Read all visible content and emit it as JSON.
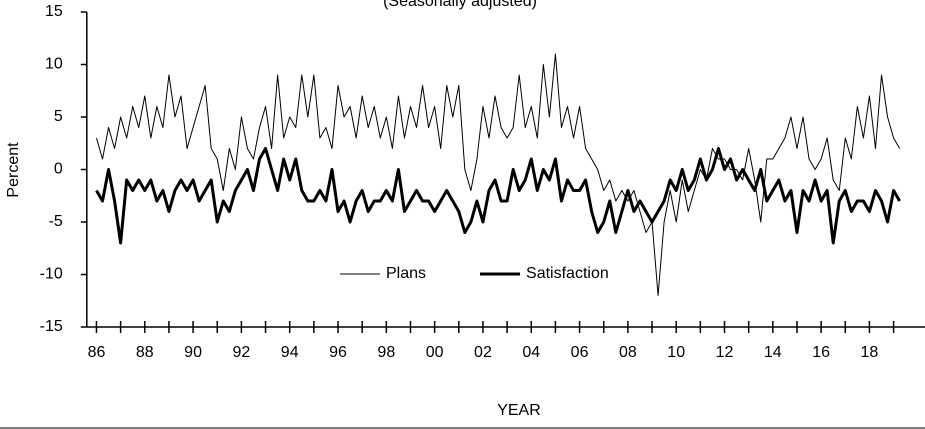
{
  "chart_data": {
    "type": "line",
    "subtitle": "(Seasonally adjusted)",
    "x_label": "YEAR",
    "y_label": "Percent",
    "legend": "bottom-center",
    "xlim": [
      1985.6,
      2020.3
    ],
    "ylim": [
      -15,
      15
    ],
    "yticks": [
      15,
      10,
      5,
      0,
      -5,
      -10,
      -15
    ],
    "xticks": [
      {
        "value": 1986,
        "label": "86"
      },
      {
        "value": 1988,
        "label": "88"
      },
      {
        "value": 1990,
        "label": "90"
      },
      {
        "value": 1992,
        "label": "92"
      },
      {
        "value": 1994,
        "label": "94"
      },
      {
        "value": 1996,
        "label": "96"
      },
      {
        "value": 1998,
        "label": "98"
      },
      {
        "value": 2000,
        "label": "00"
      },
      {
        "value": 2002,
        "label": "02"
      },
      {
        "value": 2004,
        "label": "04"
      },
      {
        "value": 2006,
        "label": "06"
      },
      {
        "value": 2008,
        "label": "08"
      },
      {
        "value": 2010,
        "label": "10"
      },
      {
        "value": 2012,
        "label": "12"
      },
      {
        "value": 2014,
        "label": "14"
      },
      {
        "value": 2016,
        "label": "16"
      },
      {
        "value": 2018,
        "label": "18"
      }
    ],
    "xticks_minor": [
      1987,
      1989,
      1991,
      1993,
      1995,
      1997,
      1999,
      2001,
      2003,
      2005,
      2007,
      2009,
      2011,
      2013,
      2015,
      2017,
      2019
    ],
    "x": [
      1986,
      1986.25,
      1986.5,
      1986.75,
      1987,
      1987.25,
      1987.5,
      1987.75,
      1988,
      1988.25,
      1988.5,
      1988.75,
      1989,
      1989.25,
      1989.5,
      1989.75,
      1990,
      1990.25,
      1990.5,
      1990.75,
      1991,
      1991.25,
      1991.5,
      1991.75,
      1992,
      1992.25,
      1992.5,
      1992.75,
      1993,
      1993.25,
      1993.5,
      1993.75,
      1994,
      1994.25,
      1994.5,
      1994.75,
      1995,
      1995.25,
      1995.5,
      1995.75,
      1996,
      1996.25,
      1996.5,
      1996.75,
      1997,
      1997.25,
      1997.5,
      1997.75,
      1998,
      1998.25,
      1998.5,
      1998.75,
      1999,
      1999.25,
      1999.5,
      1999.75,
      2000,
      2000.25,
      2000.5,
      2000.75,
      2001,
      2001.25,
      2001.5,
      2001.75,
      2002,
      2002.25,
      2002.5,
      2002.75,
      2003,
      2003.25,
      2003.5,
      2003.75,
      2004,
      2004.25,
      2004.5,
      2004.75,
      2005,
      2005.25,
      2005.5,
      2005.75,
      2006,
      2006.25,
      2006.5,
      2006.75,
      2007,
      2007.25,
      2007.5,
      2007.75,
      2008,
      2008.25,
      2008.5,
      2008.75,
      2009,
      2009.25,
      2009.5,
      2009.75,
      2010,
      2010.25,
      2010.5,
      2010.75,
      2011,
      2011.25,
      2011.5,
      2011.75,
      2012,
      2012.25,
      2012.5,
      2012.75,
      2013,
      2013.25,
      2013.5,
      2013.75,
      2014,
      2014.25,
      2014.5,
      2014.75,
      2015,
      2015.25,
      2015.5,
      2015.75,
      2016,
      2016.25,
      2016.5,
      2016.75,
      2017,
      2017.25,
      2017.5,
      2017.75,
      2018,
      2018.25,
      2018.5,
      2018.75,
      2019,
      2019.25
    ],
    "series": [
      {
        "name": "Plans",
        "color": "#000000",
        "width": 1,
        "values": [
          3,
          1,
          4,
          2,
          5,
          3,
          6,
          4,
          7,
          3,
          6,
          4,
          9,
          5,
          7,
          2,
          4,
          6,
          8,
          2,
          1,
          -2,
          2,
          0,
          5,
          2,
          1,
          4,
          6,
          2,
          9,
          3,
          5,
          4,
          9,
          5,
          9,
          3,
          4,
          2,
          8,
          5,
          6,
          3,
          7,
          4,
          6,
          3,
          5,
          2,
          7,
          3,
          6,
          4,
          8,
          4,
          6,
          2,
          8,
          5,
          8,
          0,
          -2,
          1,
          6,
          3,
          7,
          4,
          3,
          4,
          9,
          4,
          6,
          3,
          10,
          5,
          11,
          4,
          6,
          3,
          6,
          2,
          1,
          0,
          -2,
          -1,
          -3,
          -2,
          -3,
          -2,
          -4,
          -6,
          -5,
          -12,
          -5,
          -2,
          -5,
          -1,
          -4,
          -2,
          0,
          -1,
          2,
          1,
          1,
          0,
          0,
          -1,
          2,
          -1,
          -5,
          1,
          1,
          2,
          3,
          5,
          2,
          5,
          1,
          0,
          1,
          3,
          -1,
          -2,
          3,
          1,
          6,
          3,
          7,
          2,
          9,
          5,
          3,
          2
        ]
      },
      {
        "name": "Satisfaction",
        "color": "#000000",
        "width": 3,
        "values": [
          -2,
          -3,
          0,
          -3,
          -7,
          -1,
          -2,
          -1,
          -2,
          -1,
          -3,
          -2,
          -4,
          -2,
          -1,
          -2,
          -1,
          -3,
          -2,
          -1,
          -5,
          -3,
          -4,
          -2,
          -1,
          0,
          -2,
          1,
          2,
          0,
          -2,
          1,
          -1,
          1,
          -2,
          -3,
          -3,
          -2,
          -3,
          0,
          -4,
          -3,
          -5,
          -3,
          -2,
          -4,
          -3,
          -3,
          -2,
          -3,
          0,
          -4,
          -3,
          -2,
          -3,
          -3,
          -4,
          -3,
          -2,
          -3,
          -4,
          -6,
          -5,
          -3,
          -5,
          -2,
          -1,
          -3,
          -3,
          0,
          -2,
          -1,
          1,
          -2,
          0,
          -1,
          1,
          -3,
          -1,
          -2,
          -2,
          -1,
          -4,
          -6,
          -5,
          -3,
          -6,
          -4,
          -2,
          -4,
          -3,
          -4,
          -5,
          -4,
          -3,
          -1,
          -2,
          0,
          -2,
          -1,
          1,
          -1,
          0,
          2,
          0,
          1,
          -1,
          0,
          -1,
          -2,
          0,
          -3,
          -2,
          -1,
          -3,
          -2,
          -6,
          -2,
          -3,
          -1,
          -3,
          -2,
          -7,
          -3,
          -2,
          -4,
          -3,
          -3,
          -4,
          -2,
          -3,
          -5,
          -2,
          -3
        ]
      }
    ]
  }
}
